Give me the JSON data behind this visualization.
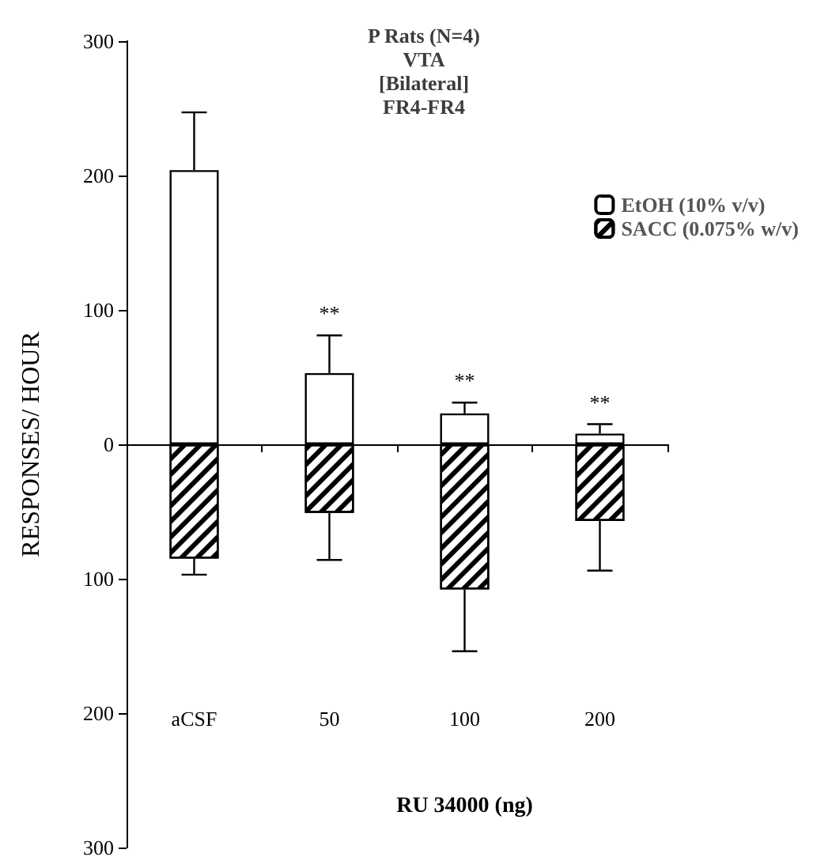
{
  "chart_data": {
    "type": "bar",
    "title": "P Rats (N=4)\nVTA\n[Bilateral]\nFR4-FR4",
    "xlabel": "RU 34000 (ng)",
    "ylabel": "RESPONSES/ HOUR",
    "categories": [
      "aCSF",
      "50",
      "100",
      "200"
    ],
    "series": [
      {
        "name": "EtOH (10% v/v)",
        "color": "#ffffff",
        "values": [
          204,
          53,
          23,
          8
        ],
        "errors": [
          [
            204,
            247
          ],
          [
            53,
            81
          ],
          [
            23,
            31
          ],
          [
            8,
            15
          ]
        ]
      },
      {
        "name": "SACC (0.075% w/v)",
        "color": "#000000",
        "values": [
          -85,
          -51,
          -108,
          -57
        ],
        "errors": [
          [
            -97,
            -85
          ],
          [
            -86,
            -51
          ],
          [
            -154,
            -108
          ],
          [
            -94,
            -57
          ]
        ]
      }
    ],
    "ylim": [
      -300,
      300
    ],
    "yticks": [
      {
        "value": -300,
        "label": "300"
      },
      {
        "value": -200,
        "label": "200"
      },
      {
        "value": -100,
        "label": "100"
      },
      0,
      100,
      200,
      300
    ],
    "annotations": [
      {
        "text": "**",
        "x": "50",
        "y": 81
      },
      {
        "text": "**",
        "x": "100",
        "y": 31
      },
      {
        "text": "**",
        "x": "200",
        "y": 15
      }
    ],
    "legend": "top right",
    "stacked": true
  }
}
